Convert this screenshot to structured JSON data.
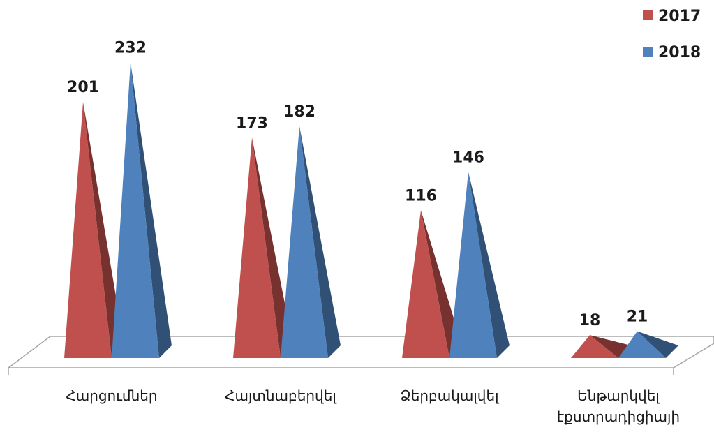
{
  "chart_data": {
    "type": "bar",
    "categories": [
      [
        "Հարցումներ"
      ],
      [
        "Հայտնաբերվել"
      ],
      [
        "Ձերբակալվել"
      ],
      [
        "Ենթարկվել",
        "էքստրադիցիայի"
      ]
    ],
    "series": [
      {
        "name": "2017",
        "color": "#c0504d",
        "values": [
          201,
          173,
          116,
          18
        ]
      },
      {
        "name": "2018",
        "color": "#4f81bd",
        "values": [
          232,
          182,
          146,
          21
        ]
      }
    ],
    "ylim": [
      0,
      240
    ],
    "grid": false,
    "legend_position": "top-right"
  }
}
